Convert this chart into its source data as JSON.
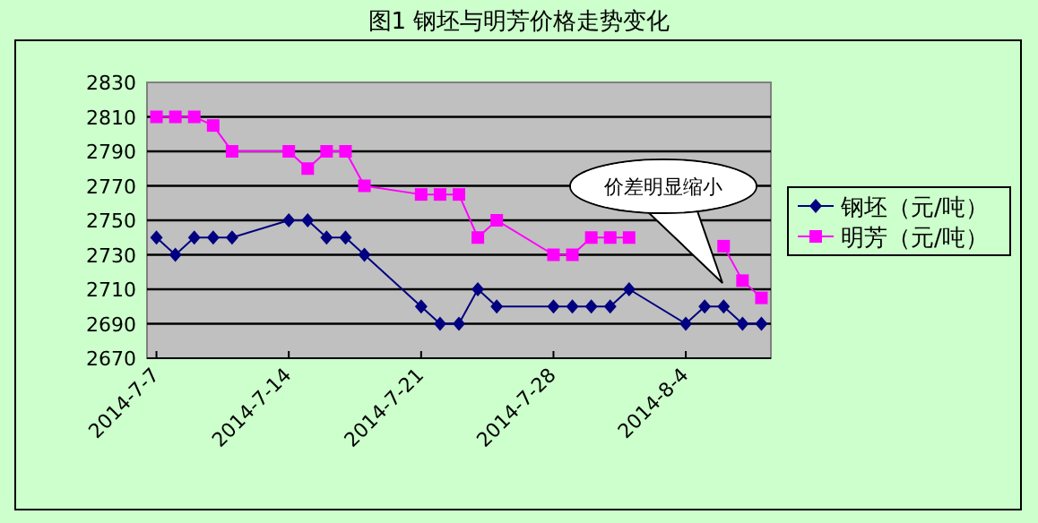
{
  "chart_data": {
    "type": "line",
    "title": "图1 钢坯与明芳价格走势变化",
    "x": [
      "2014-07-07",
      "2014-07-08",
      "2014-07-09",
      "2014-07-10",
      "2014-07-11",
      "2014-07-14",
      "2014-07-15",
      "2014-07-16",
      "2014-07-17",
      "2014-07-18",
      "2014-07-21",
      "2014-07-22",
      "2014-07-23",
      "2014-07-24",
      "2014-07-25",
      "2014-07-28",
      "2014-07-29",
      "2014-07-30",
      "2014-07-31",
      "2014-08-01",
      "2014-08-04",
      "2014-08-05",
      "2014-08-06",
      "2014-08-07",
      "2014-08-08"
    ],
    "series": [
      {
        "name": "钢坯（元/吨）",
        "color": "#000080",
        "marker": "diamond",
        "values": [
          2740,
          2730,
          2740,
          2740,
          2740,
          2750,
          2750,
          2740,
          2740,
          2730,
          2700,
          2690,
          2690,
          2710,
          2700,
          2700,
          2700,
          2700,
          2700,
          2710,
          2690,
          2700,
          2700,
          2690,
          2690
        ]
      },
      {
        "name": "明芳（元/吨）",
        "color": "#ff00ff",
        "marker": "square",
        "values": [
          2810,
          2810,
          2810,
          2805,
          2790,
          2790,
          2780,
          2790,
          2790,
          2770,
          2765,
          2765,
          2765,
          2740,
          2750,
          2730,
          2730,
          2740,
          2740,
          2740,
          null,
          null,
          2735,
          2715,
          2705
        ]
      }
    ],
    "xlim": [
      "2014-07-06T12:00",
      "2014-08-08T12:00"
    ],
    "xticks": [
      {
        "value": "2014-07-07",
        "label": "2014-7-7"
      },
      {
        "value": "2014-07-14",
        "label": "2014-7-14"
      },
      {
        "value": "2014-07-21",
        "label": "2014-7-21"
      },
      {
        "value": "2014-07-28",
        "label": "2014-7-28"
      },
      {
        "value": "2014-08-04",
        "label": "2014-8-4"
      }
    ],
    "ylim": [
      2670,
      2830
    ],
    "yticks": [
      2670,
      2690,
      2710,
      2730,
      2750,
      2770,
      2790,
      2810,
      2830
    ],
    "grid": "y",
    "legend": "right",
    "line_style": "solid",
    "annotations": [
      "价差明显缩小"
    ]
  }
}
